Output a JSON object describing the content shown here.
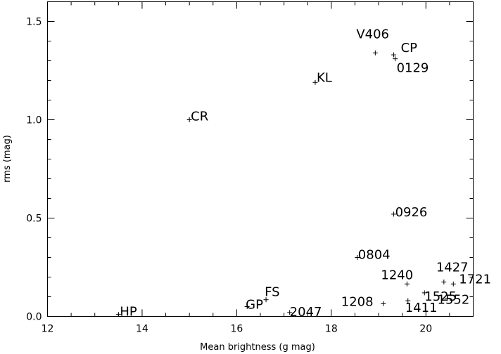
{
  "chart_data": {
    "type": "scatter",
    "title": "",
    "xlabel": "Mean brightness (g mag)",
    "ylabel": "rms (mag)",
    "xlim": [
      12,
      21
    ],
    "ylim": [
      0,
      1.6
    ],
    "grid": false,
    "x_ticks": [
      12,
      14,
      16,
      18,
      20
    ],
    "x_tick_labels": [
      "12",
      "14",
      "16",
      "18",
      "20"
    ],
    "y_ticks": [
      0.0,
      0.5,
      1.0,
      1.5
    ],
    "y_tick_labels": [
      "0.0",
      "0.5",
      "1.0",
      "1.5"
    ],
    "marker": "plus",
    "points": [
      {
        "label": "V406",
        "x": 18.93,
        "y": 1.34
      },
      {
        "label": "CP",
        "x": 19.32,
        "y": 1.33
      },
      {
        "label": "0129",
        "x": 19.35,
        "y": 1.31
      },
      {
        "label": "KL",
        "x": 17.66,
        "y": 1.19
      },
      {
        "label": "CR",
        "x": 15.0,
        "y": 1.0
      },
      {
        "label": "0926",
        "x": 19.32,
        "y": 0.52
      },
      {
        "label": "0804",
        "x": 18.55,
        "y": 0.3
      },
      {
        "label": "1427",
        "x": 20.38,
        "y": 0.175
      },
      {
        "label": "1721",
        "x": 20.58,
        "y": 0.165
      },
      {
        "label": "1240",
        "x": 19.6,
        "y": 0.165
      },
      {
        "label": "1525",
        "x": 19.97,
        "y": 0.12
      },
      {
        "label": "1208",
        "x": 19.1,
        "y": 0.065
      },
      {
        "label": "1411",
        "x": 19.62,
        "y": 0.08
      },
      {
        "label": "1552",
        "x": 20.45,
        "y": 0.09
      },
      {
        "label": "FS",
        "x": 16.62,
        "y": 0.085
      },
      {
        "label": "GP",
        "x": 16.22,
        "y": 0.05
      },
      {
        "label": "2047",
        "x": 17.12,
        "y": 0.02
      },
      {
        "label": "HP",
        "x": 13.5,
        "y": 0.01
      }
    ]
  }
}
